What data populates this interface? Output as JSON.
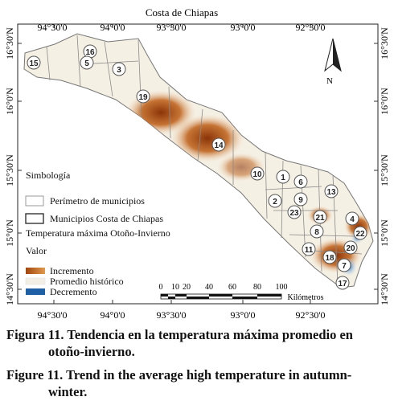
{
  "map": {
    "title": "Costa de Chiapas",
    "lon_ticks": [
      "94°30'0",
      "94°0'0",
      "93°30'0",
      "93°0'0",
      "92°30'0"
    ],
    "lat_ticks": [
      "16°30'N",
      "16°0'N",
      "15°30'N",
      "15°0'N",
      "14°30'N"
    ],
    "north_label": "N",
    "municipio_labels": [
      "15",
      "16",
      "5",
      "3",
      "19",
      "14",
      "10",
      "1",
      "6",
      "2",
      "9",
      "13",
      "23",
      "8",
      "21",
      "4",
      "22",
      "20",
      "11",
      "18",
      "7",
      "17"
    ]
  },
  "legend": {
    "heading": "Simbología",
    "perimeter_label": "Perímetro de municipios",
    "costa_label": "Municipios Costa de Chiapas",
    "temp_title": "Temperatura máxima Otoño-Invierno",
    "valor_label": "Valor",
    "increase_label": "Incremento",
    "historic_label": "Promedio histórico",
    "decrease_label": "Decremento",
    "increase_color": "#a0450e",
    "decrease_color": "#1f5fa6"
  },
  "scale": {
    "ticks": [
      "0",
      "10",
      "20",
      "40",
      "60",
      "80",
      "100"
    ],
    "unit": "Kilómetros"
  },
  "caption": {
    "es_line1": "Figura 11. Tendencia en la temperatura máxima promedio en",
    "es_line2": "otoño-invierno.",
    "en_line1": "Figure 11. Trend in the average high temperature in autumn-",
    "en_line2": "winter."
  }
}
